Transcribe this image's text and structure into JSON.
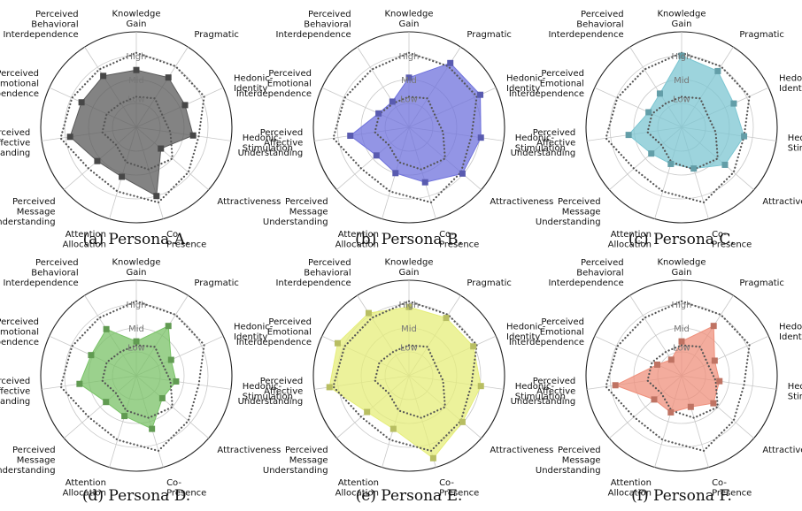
{
  "axes": [
    "Knowledge Gain",
    "Pragmatic",
    "Hedonic-Identity",
    "Hedonic-Stimulation",
    "Attractiveness",
    "Co-Presence",
    "Attention Allocation",
    "Perceived Message Understanding",
    "Perceived Affective Understanding",
    "Perceived Emotional Interdependence",
    "Perceived Behavioral Interdependence"
  ],
  "ring_labels": [
    "Low",
    "Mid",
    "High"
  ],
  "reference": {
    "outer": [
      0.78,
      0.76,
      0.78,
      0.66,
      0.72,
      0.82,
      0.7,
      0.66,
      0.8,
      0.74,
      0.72
    ],
    "inner": [
      0.32,
      0.36,
      0.3,
      0.36,
      0.5,
      0.46,
      0.38,
      0.28,
      0.36,
      0.34,
      0.3
    ]
  },
  "chart_data": [
    {
      "type": "radar",
      "title": "(a) Persona A.",
      "color": "#595959",
      "categories": [
        "Knowledge Gain",
        "Pragmatic",
        "Hedonic-Identity",
        "Hedonic-Stimulation",
        "Attractiveness",
        "Co-Presence",
        "Attention Allocation",
        "Perceived Message Understanding",
        "Perceived Affective Understanding",
        "Perceived Emotional Interdependence",
        "Perceived Behavioral Interdependence"
      ],
      "values": [
        0.6,
        0.62,
        0.56,
        0.6,
        0.34,
        0.75,
        0.54,
        0.54,
        0.7,
        0.63,
        0.64
      ],
      "ring_labels": [
        "Low",
        "Mid",
        "High"
      ]
    },
    {
      "type": "radar",
      "title": "(b) Persona B.",
      "color": "#6f72dc",
      "categories": [
        "Knowledge Gain",
        "Pragmatic",
        "Hedonic-Identity",
        "Hedonic-Stimulation",
        "Attractiveness",
        "Co-Presence",
        "Attention Allocation",
        "Perceived Message Understanding",
        "Perceived Affective Understanding",
        "Perceived Emotional Interdependence",
        "Perceived Behavioral Interdependence"
      ],
      "values": [
        0.52,
        0.8,
        0.82,
        0.76,
        0.74,
        0.6,
        0.5,
        0.45,
        0.62,
        0.35,
        0.32
      ],
      "ring_labels": [
        "Low",
        "Mid",
        "High"
      ]
    },
    {
      "type": "radar",
      "title": "(c) Persona C.",
      "color": "#7cc6d2",
      "categories": [
        "Knowledge Gain",
        "Pragmatic",
        "Hedonic-Identity",
        "Hedonic-Stimulation",
        "Attractiveness",
        "Co-Presence",
        "Attention Allocation",
        "Perceived Message Understanding",
        "Perceived Affective Understanding",
        "Perceived Emotional Interdependence",
        "Perceived Behavioral Interdependence"
      ],
      "values": [
        0.75,
        0.7,
        0.6,
        0.66,
        0.6,
        0.45,
        0.4,
        0.42,
        0.56,
        0.38,
        0.42
      ],
      "ring_labels": [
        "Low",
        "Mid",
        "High"
      ]
    },
    {
      "type": "radar",
      "title": "(d) Persona D.",
      "color": "#79c267",
      "categories": [
        "Knowledge Gain",
        "Pragmatic",
        "Hedonic-Identity",
        "Hedonic-Stimulation",
        "Attractiveness",
        "Co-Presence",
        "Attention Allocation",
        "Perceived Message Understanding",
        "Perceived Affective Understanding",
        "Perceived Emotional Interdependence",
        "Perceived Behavioral Interdependence"
      ],
      "values": [
        0.36,
        0.62,
        0.4,
        0.42,
        0.36,
        0.58,
        0.44,
        0.42,
        0.6,
        0.52,
        0.58
      ],
      "ring_labels": [
        "Low",
        "Mid",
        "High"
      ]
    },
    {
      "type": "radar",
      "title": "(e) Persona E.",
      "color": "#e6ee7a",
      "categories": [
        "Knowledge Gain",
        "Pragmatic",
        "Hedonic-Identity",
        "Hedonic-Stimulation",
        "Attractiveness",
        "Co-Presence",
        "Attention Allocation",
        "Perceived Message Understanding",
        "Perceived Affective Understanding",
        "Perceived Emotional Interdependence",
        "Perceived Behavioral Interdependence"
      ],
      "values": [
        0.72,
        0.72,
        0.74,
        0.76,
        0.74,
        0.9,
        0.58,
        0.58,
        0.84,
        0.82,
        0.78
      ],
      "ring_labels": [
        "Low",
        "Mid",
        "High"
      ]
    },
    {
      "type": "radar",
      "title": "(f) Persona F.",
      "color": "#ef907c",
      "categories": [
        "Knowledge Gain",
        "Pragmatic",
        "Hedonic-Identity",
        "Hedonic-Stimulation",
        "Attractiveness",
        "Co-Presence",
        "Attention Allocation",
        "Perceived Message Understanding",
        "Perceived Affective Understanding",
        "Perceived Emotional Interdependence",
        "Perceived Behavioral Interdependence"
      ],
      "values": [
        0.36,
        0.62,
        0.38,
        0.4,
        0.44,
        0.34,
        0.4,
        0.38,
        0.7,
        0.28,
        0.2
      ],
      "ring_labels": [
        "Low",
        "Mid",
        "High"
      ]
    }
  ]
}
